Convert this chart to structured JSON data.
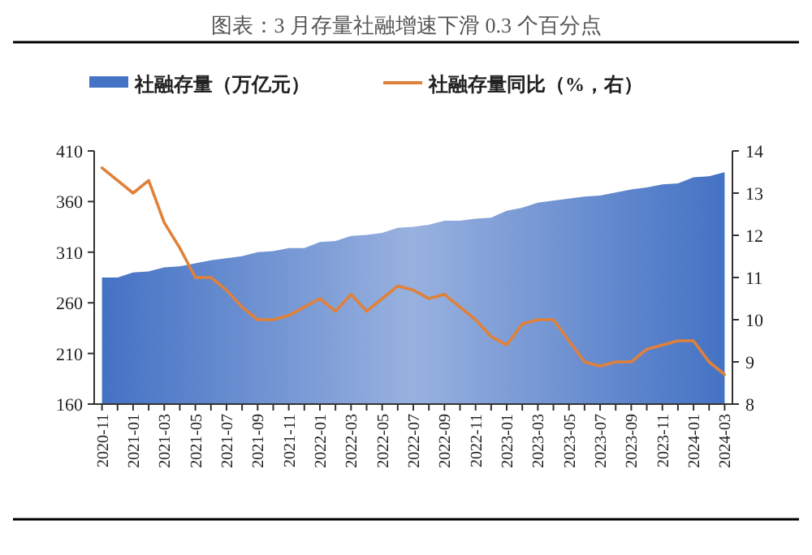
{
  "chart_data": {
    "type": "area",
    "title": "图表：3 月存量社融增速下滑 0.3 个百分点",
    "categories": [
      "2020-11",
      null,
      "2021-01",
      null,
      "2021-03",
      null,
      "2021-05",
      null,
      "2021-07",
      null,
      "2021-09",
      null,
      "2021-11",
      null,
      "2022-01",
      null,
      "2022-03",
      null,
      "2022-05",
      null,
      "2022-07",
      null,
      "2022-09",
      null,
      "2022-11",
      null,
      "2023-01",
      null,
      "2023-03",
      null,
      "2023-05",
      null,
      "2023-07",
      null,
      "2023-09",
      null,
      "2023-11",
      null,
      "2024-01",
      null,
      "2024-03"
    ],
    "series": [
      {
        "name": "社融存量（万亿元）",
        "color": "#4472c4",
        "values": [
          285,
          285,
          290,
          291,
          295,
          296,
          299,
          302,
          304,
          306,
          310,
          311,
          314,
          314,
          320,
          321,
          326,
          327,
          329,
          334,
          335,
          337,
          341,
          341,
          343,
          344,
          351,
          354,
          359,
          361,
          363,
          365,
          366,
          369,
          372,
          374,
          377,
          378,
          384,
          385,
          389
        ]
      },
      {
        "name": "社融存量同比（%，右）",
        "type": "line",
        "axis": "y2",
        "color": "#e0813a",
        "values": [
          13.6,
          13.3,
          13.0,
          13.3,
          12.3,
          11.7,
          11.0,
          11.0,
          10.7,
          10.3,
          10.0,
          10.0,
          10.1,
          10.3,
          10.5,
          10.2,
          10.6,
          10.2,
          10.5,
          10.8,
          10.7,
          10.5,
          10.6,
          10.3,
          10.0,
          9.6,
          9.4,
          9.9,
          10.0,
          10.0,
          9.5,
          9.0,
          8.9,
          9.0,
          9.0,
          9.3,
          9.4,
          9.5,
          9.5,
          9.0,
          8.7
        ]
      }
    ],
    "ylim": [
      160,
      410
    ],
    "yticks": [
      160,
      210,
      260,
      310,
      360,
      410
    ],
    "y2lim": [
      8,
      14
    ],
    "y2ticks": [
      8,
      9,
      10,
      11,
      12,
      13,
      14
    ],
    "legend": "top"
  }
}
